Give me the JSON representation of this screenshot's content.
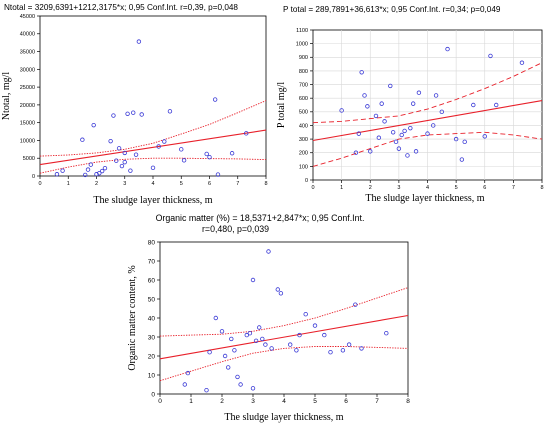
{
  "chart_data": [
    {
      "type": "scatter",
      "title": "Ntotal = 3209,6391+1212,3175*x; 0,95 Conf.Int. r=0,39, p=0,048",
      "xlabel": "The sludge layer thickness, m",
      "ylabel": "Ntotal, mg/l",
      "xlim": [
        0,
        8
      ],
      "ylim": [
        0,
        45000
      ],
      "xticks": [
        "0",
        "1",
        "2",
        "3",
        "4",
        "5",
        "6",
        "7",
        "8"
      ],
      "yticks": [
        "0",
        "5000",
        "10000",
        "15000",
        "20000",
        "25000",
        "30000",
        "35000",
        "40000",
        "45000"
      ],
      "grid": false,
      "regression": {
        "intercept": 3209.6391,
        "slope": 1212.3175
      },
      "confidence_band": {
        "x": [
          0,
          1,
          2,
          3,
          4,
          5,
          6,
          7,
          8
        ],
        "upper": [
          5600,
          5900,
          6500,
          7500,
          9200,
          11800,
          14500,
          17800,
          21200
        ],
        "lower": [
          800,
          2500,
          3900,
          4700,
          5000,
          5000,
          4900,
          4800,
          4600
        ]
      },
      "points": [
        [
          0.6,
          500
        ],
        [
          0.8,
          1500
        ],
        [
          1.5,
          10200
        ],
        [
          1.6,
          300
        ],
        [
          1.7,
          1800
        ],
        [
          1.8,
          3200
        ],
        [
          1.9,
          14300
        ],
        [
          2.0,
          500
        ],
        [
          2.1,
          800
        ],
        [
          2.2,
          1400
        ],
        [
          2.3,
          2200
        ],
        [
          2.5,
          9800
        ],
        [
          2.6,
          17000
        ],
        [
          2.7,
          4300
        ],
        [
          2.8,
          7800
        ],
        [
          2.9,
          2800
        ],
        [
          3.0,
          6500
        ],
        [
          3.0,
          3900
        ],
        [
          3.1,
          17500
        ],
        [
          3.2,
          1500
        ],
        [
          3.3,
          17800
        ],
        [
          3.4,
          6000
        ],
        [
          3.5,
          37800
        ],
        [
          3.6,
          17300
        ],
        [
          4.0,
          2300
        ],
        [
          4.2,
          8300
        ],
        [
          4.4,
          9700
        ],
        [
          4.6,
          18200
        ],
        [
          5.0,
          7500
        ],
        [
          5.1,
          4400
        ],
        [
          5.9,
          6200
        ],
        [
          6.0,
          5300
        ],
        [
          6.2,
          21500
        ],
        [
          6.3,
          400
        ],
        [
          6.8,
          6400
        ],
        [
          7.3,
          12000
        ]
      ]
    },
    {
      "type": "scatter",
      "title": "P total  = 289,7891+36,613*x; 0,95 Conf.Int. r=0,34; p=0,049",
      "xlabel": "The sludge layer thickness, m",
      "ylabel": "P total mg/l",
      "xlim": [
        0,
        8
      ],
      "ylim": [
        0,
        1100
      ],
      "xticks": [
        "0",
        "1",
        "2",
        "3",
        "4",
        "5",
        "6",
        "7",
        "8"
      ],
      "yticks": [
        "0",
        "100",
        "200",
        "300",
        "400",
        "500",
        "600",
        "700",
        "800",
        "900",
        "1000",
        "1100"
      ],
      "grid": true,
      "regression": {
        "intercept": 289.7891,
        "slope": 36.613
      },
      "confidence_band": {
        "x": [
          0,
          1,
          2,
          3,
          4,
          5,
          6,
          7,
          8
        ],
        "upper": [
          420,
          430,
          450,
          470,
          520,
          590,
          670,
          760,
          860
        ],
        "lower": [
          100,
          160,
          230,
          300,
          330,
          340,
          350,
          330,
          300
        ]
      },
      "points": [
        [
          1.0,
          510
        ],
        [
          1.5,
          200
        ],
        [
          1.6,
          340
        ],
        [
          1.7,
          790
        ],
        [
          1.8,
          620
        ],
        [
          1.9,
          540
        ],
        [
          2.0,
          210
        ],
        [
          2.2,
          470
        ],
        [
          2.3,
          310
        ],
        [
          2.4,
          560
        ],
        [
          2.5,
          430
        ],
        [
          2.7,
          690
        ],
        [
          2.8,
          350
        ],
        [
          2.9,
          280
        ],
        [
          3.0,
          230
        ],
        [
          3.1,
          330
        ],
        [
          3.2,
          360
        ],
        [
          3.3,
          180
        ],
        [
          3.4,
          380
        ],
        [
          3.5,
          560
        ],
        [
          3.6,
          210
        ],
        [
          3.7,
          640
        ],
        [
          4.0,
          340
        ],
        [
          4.2,
          400
        ],
        [
          4.3,
          620
        ],
        [
          4.5,
          500
        ],
        [
          4.7,
          960
        ],
        [
          5.0,
          300
        ],
        [
          5.2,
          150
        ],
        [
          5.3,
          280
        ],
        [
          5.6,
          550
        ],
        [
          6.0,
          320
        ],
        [
          6.2,
          910
        ],
        [
          6.4,
          550
        ],
        [
          7.3,
          860
        ]
      ]
    },
    {
      "type": "scatter",
      "title_line1": "Organic matter (%) = 18,5371+2,847*x; 0,95 Conf.Int.",
      "title_line2": "r=0,480, p=0,039",
      "xlabel": "The sludge layer thickness, m",
      "ylabel": "Organic matter content, %",
      "xlim": [
        0,
        8
      ],
      "ylim": [
        0,
        80
      ],
      "xticks": [
        "0",
        "1",
        "2",
        "3",
        "4",
        "5",
        "6",
        "7",
        "8"
      ],
      "yticks": [
        "0",
        "10",
        "20",
        "30",
        "40",
        "50",
        "60",
        "70",
        "80"
      ],
      "grid": false,
      "regression": {
        "intercept": 18.5371,
        "slope": 2.847
      },
      "confidence_band": {
        "x": [
          0,
          1,
          2,
          3,
          4,
          5,
          6,
          7,
          8
        ],
        "upper": [
          30.5,
          31,
          31.5,
          33,
          36,
          40,
          45,
          50.5,
          56
        ],
        "lower": [
          7,
          12,
          17,
          21.5,
          24,
          25,
          25,
          24.5,
          24
        ]
      },
      "points": [
        [
          0.8,
          5
        ],
        [
          0.9,
          11
        ],
        [
          1.5,
          2
        ],
        [
          1.6,
          22
        ],
        [
          1.8,
          40
        ],
        [
          2.0,
          33
        ],
        [
          2.1,
          20
        ],
        [
          2.2,
          14
        ],
        [
          2.3,
          29
        ],
        [
          2.4,
          23
        ],
        [
          2.5,
          9
        ],
        [
          2.6,
          5
        ],
        [
          2.8,
          31
        ],
        [
          2.9,
          32
        ],
        [
          3.0,
          60
        ],
        [
          3.0,
          3
        ],
        [
          3.1,
          28
        ],
        [
          3.2,
          35
        ],
        [
          3.3,
          29
        ],
        [
          3.4,
          26
        ],
        [
          3.5,
          75
        ],
        [
          3.6,
          24
        ],
        [
          3.8,
          55
        ],
        [
          3.9,
          53
        ],
        [
          4.2,
          26
        ],
        [
          4.4,
          23
        ],
        [
          4.5,
          31
        ],
        [
          4.7,
          42
        ],
        [
          5.0,
          36
        ],
        [
          5.3,
          31
        ],
        [
          5.5,
          22
        ],
        [
          5.9,
          23
        ],
        [
          6.1,
          26
        ],
        [
          6.3,
          47
        ],
        [
          6.5,
          24
        ],
        [
          7.3,
          32
        ]
      ]
    }
  ]
}
